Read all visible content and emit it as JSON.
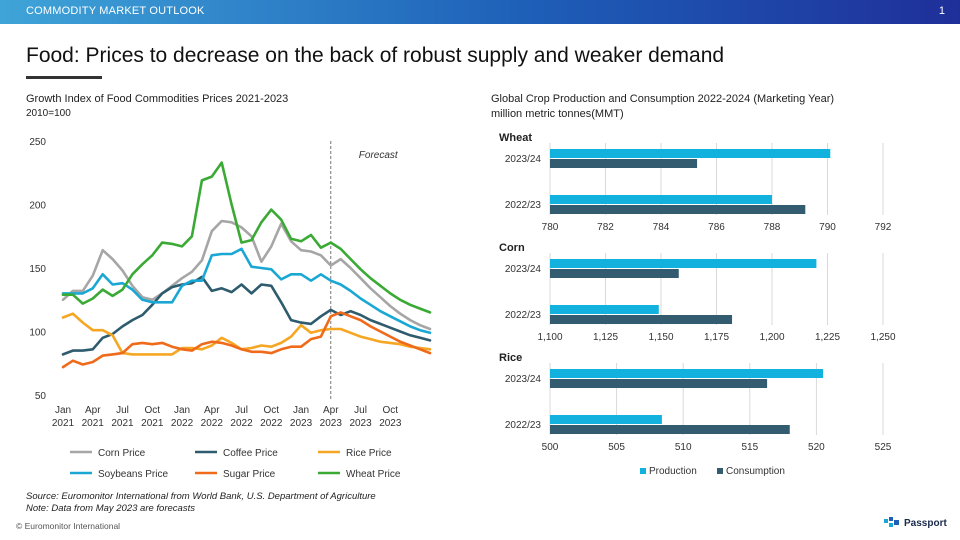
{
  "header": {
    "section": "COMMODITY MARKET OUTLOOK",
    "page_number": "1"
  },
  "title": "Food: Prices to decrease on the back of robust supply and weaker demand",
  "left_chart_title": "Growth Index of Food Commodities Prices 2021-2023",
  "left_chart_subtitle": "2010=100",
  "right_chart_title": "Global Crop Production and Consumption 2022-2024 (Marketing Year)",
  "right_chart_subtitle": "million metric tonnes(MMT)",
  "footnotes": {
    "source": "Source: Euromonitor International from World Bank, U.S. Department of Agriculture",
    "note": "Note: Data from May 2023 are forecasts"
  },
  "copyright": "© Euromonitor International",
  "brand": "Passport",
  "colors": {
    "corn": "#a6a6a6",
    "coffee": "#2e5c6e",
    "rice": "#f5a623",
    "soybeans": "#1aa7d4",
    "sugar": "#ef6a1a",
    "wheat": "#3aaa35",
    "production": "#13b1de",
    "consumption": "#345c70",
    "accent": "#1e5fb8"
  },
  "chart_data": [
    {
      "type": "line",
      "title": "Growth Index of Food Commodities Prices 2021-2023",
      "subtitle": "2010=100",
      "ylim": [
        50,
        250
      ],
      "yticks": [
        50,
        100,
        150,
        200,
        250
      ],
      "x_ticks": [
        {
          "month": "Jan",
          "year": "2021",
          "index": 0
        },
        {
          "month": "Apr",
          "year": "2021",
          "index": 3
        },
        {
          "month": "Jul",
          "year": "2021",
          "index": 6
        },
        {
          "month": "Oct",
          "year": "2021",
          "index": 9
        },
        {
          "month": "Jan",
          "year": "2022",
          "index": 12
        },
        {
          "month": "Apr",
          "year": "2022",
          "index": 15
        },
        {
          "month": "Jul",
          "year": "2022",
          "index": 18
        },
        {
          "month": "Oct",
          "year": "2022",
          "index": 21
        },
        {
          "month": "Jan",
          "year": "2023",
          "index": 24
        },
        {
          "month": "Apr",
          "year": "2023",
          "index": 27
        },
        {
          "month": "Jul",
          "year": "2023",
          "index": 30
        },
        {
          "month": "Oct",
          "year": "2023",
          "index": 33
        }
      ],
      "forecast_index": 27,
      "forecast_label": "Forecast",
      "series": [
        {
          "name": "Corn Price",
          "color": "#a6a6a6",
          "values": [
            125,
            132,
            132,
            144,
            164,
            157,
            148,
            136,
            127,
            125,
            130,
            136,
            142,
            147,
            156,
            179,
            187,
            186,
            182,
            175,
            155,
            167,
            185,
            171,
            164,
            163,
            160,
            152,
            157,
            150,
            142,
            134,
            127,
            120,
            114,
            109,
            105,
            102
          ]
        },
        {
          "name": "Coffee Price",
          "color": "#2e5c6e",
          "values": [
            82,
            85,
            85,
            86,
            95,
            98,
            104,
            109,
            113,
            121,
            130,
            135,
            137,
            138,
            143,
            132,
            134,
            131,
            137,
            130,
            137,
            136,
            123,
            109,
            107,
            106,
            112,
            117,
            113,
            116,
            113,
            109,
            106,
            103,
            100,
            97,
            95,
            93
          ]
        },
        {
          "name": "Rice Price",
          "color": "#f5a623",
          "values": [
            111,
            114,
            107,
            101,
            101,
            97,
            83,
            82,
            82,
            82,
            82,
            82,
            87,
            87,
            86,
            89,
            95,
            91,
            86,
            87,
            89,
            88,
            91,
            96,
            105,
            99,
            101,
            102,
            102,
            99,
            96,
            94,
            92,
            91,
            90,
            88,
            87,
            86
          ]
        },
        {
          "name": "Soybeans Price",
          "color": "#1aa7d4",
          "values": [
            130,
            130,
            130,
            134,
            145,
            137,
            138,
            133,
            125,
            123,
            123,
            123,
            136,
            140,
            140,
            160,
            161,
            161,
            165,
            151,
            150,
            149,
            141,
            145,
            145,
            140,
            145,
            140,
            137,
            132,
            126,
            121,
            116,
            112,
            108,
            104,
            101,
            99
          ]
        },
        {
          "name": "Sugar Price",
          "color": "#ef6a1a",
          "values": [
            72,
            77,
            74,
            76,
            81,
            82,
            83,
            90,
            91,
            90,
            91,
            88,
            86,
            85,
            90,
            92,
            91,
            89,
            86,
            84,
            84,
            83,
            86,
            88,
            88,
            94,
            96,
            112,
            115,
            112,
            109,
            104,
            100,
            96,
            92,
            89,
            86,
            83
          ]
        },
        {
          "name": "Wheat Price",
          "color": "#3aaa35",
          "values": [
            129,
            129,
            122,
            126,
            133,
            128,
            133,
            145,
            153,
            160,
            170,
            169,
            167,
            175,
            219,
            222,
            233,
            200,
            170,
            172,
            186,
            196,
            188,
            173,
            171,
            176,
            166,
            170,
            165,
            157,
            149,
            142,
            136,
            130,
            125,
            121,
            118,
            115
          ]
        }
      ]
    },
    {
      "type": "bar",
      "title": "Wheat",
      "categories": [
        "2023/24",
        "2022/23"
      ],
      "series": [
        {
          "name": "Production",
          "values": [
            790.1,
            788.0
          ]
        },
        {
          "name": "Consumption",
          "values": [
            785.3,
            789.2
          ]
        }
      ],
      "xlim": [
        780,
        792
      ],
      "xticks": [
        780,
        782,
        784,
        786,
        788,
        790,
        792
      ]
    },
    {
      "type": "bar",
      "title": "Corn",
      "categories": [
        "2023/24",
        "2022/23"
      ],
      "series": [
        {
          "name": "Production",
          "values": [
            1220,
            1149
          ]
        },
        {
          "name": "Consumption",
          "values": [
            1158,
            1182
          ]
        }
      ],
      "xlim": [
        1100,
        1250
      ],
      "xticks": [
        1100,
        1125,
        1150,
        1175,
        1200,
        1225,
        1250
      ],
      "xtick_labels": [
        "1,100",
        "1,125",
        "1,150",
        "1,175",
        "1,200",
        "1,225",
        "1,250"
      ]
    },
    {
      "type": "bar",
      "title": "Rice",
      "categories": [
        "2023/24",
        "2022/23"
      ],
      "series": [
        {
          "name": "Production",
          "values": [
            520.5,
            508.4
          ]
        },
        {
          "name": "Consumption",
          "values": [
            516.3,
            518.0
          ]
        }
      ],
      "xlim": [
        500,
        525
      ],
      "xticks": [
        500,
        505,
        510,
        515,
        520,
        525
      ]
    }
  ],
  "right_legend": [
    {
      "name": "Production",
      "color": "#13b1de"
    },
    {
      "name": "Consumption",
      "color": "#345c70"
    }
  ]
}
